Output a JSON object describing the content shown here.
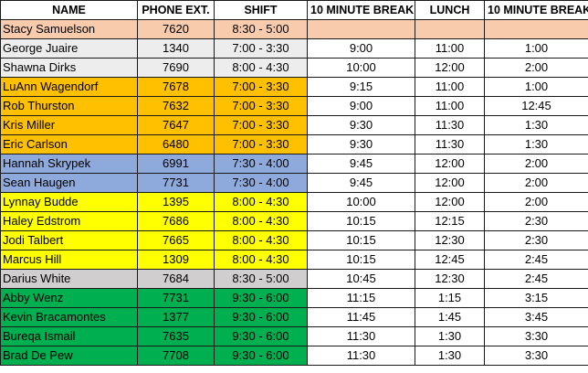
{
  "headers": [
    "NAME",
    "PHONE EXT.",
    "SHIFT",
    "10 MINUTE BREAK",
    "LUNCH",
    "10 MINUTE BREAK"
  ],
  "colors": {
    "salmon": "#f8cbad",
    "light-gray": "#ededed",
    "orange": "#ffc000",
    "blue": "#8ea9db",
    "yellow": "#ffff00",
    "gray": "#d0cece",
    "green": "#00b050",
    "white": "#ffffff"
  },
  "rows": [
    {
      "name": "Stacy Samuelson",
      "ext": "7620",
      "shift": "8:30 - 5:00",
      "break1": "",
      "lunch": "",
      "break2": "",
      "color": "salmon",
      "fill_all": true
    },
    {
      "name": "George Juaire",
      "ext": "1340",
      "shift": "7:00 - 3:30",
      "break1": "9:00",
      "lunch": "11:00",
      "break2": "1:00",
      "color": "light-gray",
      "fill_all": false
    },
    {
      "name": "Shawna Dirks",
      "ext": "7690",
      "shift": "8:00 - 4:30",
      "break1": "10:00",
      "lunch": "12:00",
      "break2": "2:00",
      "color": "light-gray",
      "fill_all": false
    },
    {
      "name": "LuAnn Wagendorf",
      "ext": "7678",
      "shift": "7:00 - 3:30",
      "break1": "9:15",
      "lunch": "11:00",
      "break2": "1:00",
      "color": "orange",
      "fill_all": false
    },
    {
      "name": "Rob Thurston",
      "ext": "7632",
      "shift": "7:00 - 3:30",
      "break1": "9:00",
      "lunch": "11:00",
      "break2": "12:45",
      "color": "orange",
      "fill_all": false
    },
    {
      "name": "Kris Miller",
      "ext": "7647",
      "shift": "7:00 - 3:30",
      "break1": "9:30",
      "lunch": "11:30",
      "break2": "1:30",
      "color": "orange",
      "fill_all": false
    },
    {
      "name": "Eric Carlson",
      "ext": "6480",
      "shift": "7:00 - 3:30",
      "break1": "9:30",
      "lunch": "11:30",
      "break2": "1:30",
      "color": "orange",
      "fill_all": false
    },
    {
      "name": "Hannah Skrypek",
      "ext": "6991",
      "shift": "7:30 - 4:00",
      "break1": "9:45",
      "lunch": "12:00",
      "break2": "2:00",
      "color": "blue",
      "fill_all": false
    },
    {
      "name": "Sean Haugen",
      "ext": "7731",
      "shift": "7:30 - 4:00",
      "break1": "9:45",
      "lunch": "12:00",
      "break2": "2:00",
      "color": "blue",
      "fill_all": false
    },
    {
      "name": "Lynnay Budde",
      "ext": "1395",
      "shift": "8:00 - 4:30",
      "break1": "10:00",
      "lunch": "12:00",
      "break2": "2:00",
      "color": "yellow",
      "fill_all": false
    },
    {
      "name": "Haley Edstrom",
      "ext": "7686",
      "shift": "8:00 - 4:30",
      "break1": "10:15",
      "lunch": "12:15",
      "break2": "2:30",
      "color": "yellow",
      "fill_all": false
    },
    {
      "name": "Jodi Talbert",
      "ext": "7665",
      "shift": "8:00 - 4:30",
      "break1": "10:15",
      "lunch": "12:30",
      "break2": "2:30",
      "color": "yellow",
      "fill_all": false
    },
    {
      "name": "Marcus Hill",
      "ext": "1309",
      "shift": "8:00 - 4:30",
      "break1": "10:15",
      "lunch": "12:45",
      "break2": "2:45",
      "color": "yellow",
      "fill_all": false
    },
    {
      "name": "Darius White",
      "ext": "7684",
      "shift": "8:30 - 5:00",
      "break1": "10:45",
      "lunch": "12:30",
      "break2": "2:45",
      "color": "gray",
      "fill_all": false
    },
    {
      "name": "Abby Wenz",
      "ext": "7731",
      "shift": "9:30 - 6:00",
      "break1": "11:15",
      "lunch": "1:15",
      "break2": "3:15",
      "color": "green",
      "fill_all": false
    },
    {
      "name": "Kevin Bracamontes",
      "ext": "1377",
      "shift": "9:30 - 6:00",
      "break1": "11:45",
      "lunch": "1:45",
      "break2": "3:45",
      "color": "green",
      "fill_all": false
    },
    {
      "name": "Bureqa Ismail",
      "ext": "7635",
      "shift": "9:30 - 6:00",
      "break1": "11:30",
      "lunch": "1:30",
      "break2": "3:30",
      "color": "green",
      "fill_all": false
    },
    {
      "name": "Brad De Pew",
      "ext": "7708",
      "shift": "9:30 - 6:00",
      "break1": "11:30",
      "lunch": "1:30",
      "break2": "3:30",
      "color": "green",
      "fill_all": false
    }
  ]
}
